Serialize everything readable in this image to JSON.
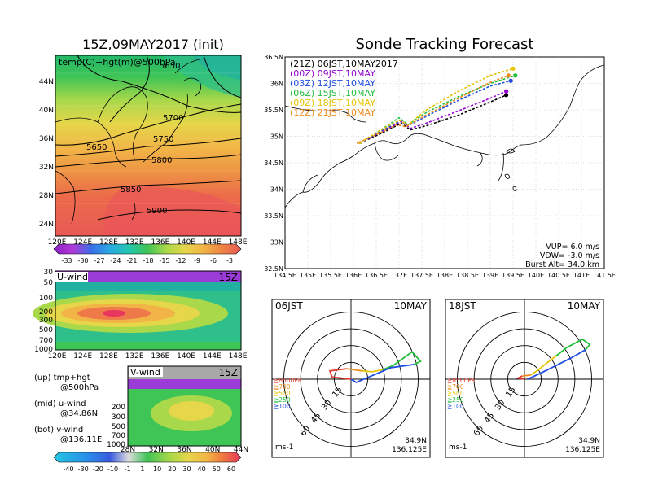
{
  "title_left": "15Z,09MAY2017 (init)",
  "title_right": "Sonde Tracking Forecast",
  "colors": {
    "c00": "#000000",
    "c03": "#9400d3",
    "c06": "#1f4de0",
    "c09": "#1fbf3a",
    "c12": "#e8c400",
    "c15": "#f08c1e",
    "r850": "#e23a2a",
    "y": "#e8c400"
  },
  "map_panel": {
    "label": "temp(C)+hgt(m)@500hPa",
    "contour_labels": [
      "5650",
      "5700",
      "5650",
      "5750",
      "5800",
      "5850",
      "5900"
    ],
    "y_ticks": [
      "44N",
      "40N",
      "36N",
      "32N",
      "28N",
      "24N"
    ],
    "x_ticks": [
      "120E",
      "124E",
      "128E",
      "132E",
      "136E",
      "140E",
      "144E",
      "148E"
    ],
    "colorbar": [
      "-33",
      "-30",
      "-27",
      "-24",
      "-21",
      "-18",
      "-15",
      "-12",
      "-9",
      "-6",
      "-3"
    ]
  },
  "u_panel": {
    "label": "U-wind",
    "time": "15Z",
    "y_ticks": [
      "30",
      "50",
      "100",
      "200",
      "300",
      "500",
      "700",
      "1000"
    ],
    "x_ticks": [
      "120E",
      "124E",
      "128E",
      "132E",
      "136E",
      "140E",
      "144E",
      "148E"
    ]
  },
  "v_panel": {
    "label": "V-wind",
    "time": "15Z",
    "y_ticks": [
      "200",
      "300",
      "500",
      "700",
      "1000"
    ],
    "x_ticks": [
      "28N",
      "32N",
      "36N",
      "40N",
      "44N"
    ],
    "colorbar": [
      "-40",
      "-30",
      "-20",
      "-10",
      "-1",
      "1",
      "10",
      "20",
      "30",
      "40",
      "50",
      "60"
    ]
  },
  "captions": [
    {
      "a": "(up) tmp+hgt",
      "b": "@500hPa"
    },
    {
      "a": "(mid) u-wind",
      "b": "@34.86N"
    },
    {
      "a": "(bot) v-wind",
      "b": "@136.11E"
    }
  ],
  "track_panel": {
    "legend": [
      {
        "text": "(21Z) 06JST,10MAY2017",
        "color": "#000000"
      },
      {
        "text": "(00Z) 09JST,10MAY",
        "color": "#9400d3"
      },
      {
        "text": "(03Z) 12JST,10MAY",
        "color": "#1f4de0"
      },
      {
        "text": "(06Z) 15JST,10MAY",
        "color": "#1fbf3a"
      },
      {
        "text": "(09Z) 18JST,10MAY",
        "color": "#e8c400"
      },
      {
        "text": "(12Z) 21JST,10MAY",
        "color": "#f08c1e"
      }
    ],
    "params": [
      "VUP= 6.0 m/s",
      "VDW= -3.0 m/s",
      "Burst Alt= 34.0 km"
    ],
    "y_ticks": [
      "36.5N",
      "36N",
      "35.5N",
      "35N",
      "34.5N",
      "34N",
      "33.5N",
      "33N",
      "32.5N"
    ],
    "x_ticks": [
      "134.5E",
      "135E",
      "135.5E",
      "136E",
      "136.5E",
      "137E",
      "137.5E",
      "138E",
      "138.5E",
      "139E",
      "139.5E",
      "140E",
      "140.5E",
      "141E",
      "141.5E"
    ]
  },
  "hodo_left": {
    "time": "06JST",
    "date": "10MAY",
    "rings": [
      "15",
      "30",
      "45",
      "60"
    ],
    "levels": [
      "≧850hPa",
      "≧700",
      "≧500",
      "≧250",
      "≧100"
    ],
    "level_colors": [
      "#e23a2a",
      "#f08c1e",
      "#e8c400",
      "#1fbf3a",
      "#1f4de0"
    ],
    "lat": "34.9N",
    "lon": "136.125E",
    "unit": "ms-1"
  },
  "hodo_right": {
    "time": "18JST",
    "date": "10MAY",
    "rings": [
      "15",
      "30",
      "45",
      "60"
    ],
    "levels": [
      "≧850hPa",
      "≧700",
      "≧500",
      "≧250",
      "≧100"
    ],
    "level_colors": [
      "#e23a2a",
      "#f08c1e",
      "#e8c400",
      "#1fbf3a",
      "#1f4de0"
    ],
    "lat": "34.9N",
    "lon": "136.125E",
    "unit": "ms-1"
  },
  "chart_data": [
    {
      "type": "line",
      "title": "Sonde Tracking Forecast",
      "xlabel": "",
      "ylabel": "",
      "xlim": [
        134.5,
        141.5
      ],
      "ylim": [
        32.5,
        36.5
      ],
      "series": [
        {
          "name": "(21Z) 06JST,10MAY2017",
          "style": "dashed",
          "x": [
            136.15,
            136.6,
            137.05,
            137.25,
            137.6,
            138.3,
            139.0,
            139.35
          ],
          "y": [
            34.88,
            35.05,
            35.25,
            35.12,
            35.2,
            35.4,
            35.65,
            35.78
          ]
        },
        {
          "name": "(00Z) 09JST,10MAY",
          "style": "dashed",
          "x": [
            136.15,
            136.6,
            137.05,
            137.25,
            137.6,
            138.3,
            139.0,
            139.35
          ],
          "y": [
            34.88,
            35.08,
            35.28,
            35.15,
            35.25,
            35.48,
            35.72,
            35.85
          ]
        },
        {
          "name": "(03Z) 12JST,10MAY",
          "style": "dashed",
          "x": [
            136.15,
            136.6,
            137.05,
            137.2,
            137.6,
            138.3,
            139.0,
            139.45
          ],
          "y": [
            34.88,
            35.1,
            35.3,
            35.2,
            35.38,
            35.68,
            35.95,
            36.05
          ]
        },
        {
          "name": "(06Z) 15JST,10MAY",
          "style": "dashed",
          "x": [
            136.15,
            136.6,
            137.0,
            137.2,
            137.6,
            138.3,
            139.0,
            139.55
          ],
          "y": [
            34.88,
            35.12,
            35.35,
            35.22,
            35.45,
            35.75,
            36.0,
            36.15
          ]
        },
        {
          "name": "(09Z) 18JST,10MAY",
          "style": "dashed",
          "x": [
            136.15,
            136.6,
            137.0,
            137.2,
            137.6,
            138.3,
            139.0,
            139.5
          ],
          "y": [
            34.88,
            35.12,
            35.3,
            35.22,
            35.5,
            35.85,
            36.15,
            36.28
          ]
        },
        {
          "name": "(12Z) 21JST,10MAY",
          "style": "dashed",
          "x": [
            136.1,
            136.55,
            136.95,
            137.15,
            137.55,
            138.3,
            139.0,
            139.4
          ],
          "y": [
            34.88,
            35.05,
            35.22,
            35.18,
            35.38,
            35.72,
            36.02,
            36.15
          ]
        }
      ]
    },
    {
      "type": "line",
      "title": "06JST 10MAY hodograph",
      "xlabel": "",
      "ylabel": "",
      "xlim": [
        -75,
        75
      ],
      "ylim": [
        -75,
        75
      ],
      "series": [
        {
          "name": "≧850hPa",
          "x": [
            0,
            -18,
            -20,
            -4
          ],
          "y": [
            0,
            2,
            8,
            10
          ]
        },
        {
          "name": "≧700",
          "x": [
            -4,
            10
          ],
          "y": [
            10,
            8
          ]
        },
        {
          "name": "≧500",
          "x": [
            10,
            20,
            30
          ],
          "y": [
            8,
            7,
            9
          ]
        },
        {
          "name": "≧250",
          "x": [
            30,
            40,
            58,
            66,
            60
          ],
          "y": [
            9,
            13,
            26,
            17,
            14
          ]
        },
        {
          "name": "≧100",
          "x": [
            60,
            38,
            5,
            0
          ],
          "y": [
            14,
            11,
            -3,
            0
          ]
        }
      ]
    },
    {
      "type": "line",
      "title": "18JST 10MAY hodograph",
      "xlabel": "",
      "ylabel": "",
      "xlim": [
        -75,
        75
      ],
      "ylim": [
        -75,
        75
      ],
      "series": [
        {
          "name": "≧850hPa",
          "x": [
            0,
            -6,
            -2
          ],
          "y": [
            0,
            1,
            3
          ]
        },
        {
          "name": "≧700",
          "x": [
            -2,
            6
          ],
          "y": [
            3,
            4
          ]
        },
        {
          "name": "≧500",
          "x": [
            6,
            12,
            22,
            30
          ],
          "y": [
            4,
            8,
            16,
            22
          ]
        },
        {
          "name": "≧250",
          "x": [
            30,
            40,
            55,
            62,
            58
          ],
          "y": [
            22,
            30,
            38,
            33,
            28
          ]
        },
        {
          "name": "≧100",
          "x": [
            58,
            44,
            20,
            3
          ],
          "y": [
            28,
            20,
            8,
            0
          ]
        }
      ]
    }
  ]
}
